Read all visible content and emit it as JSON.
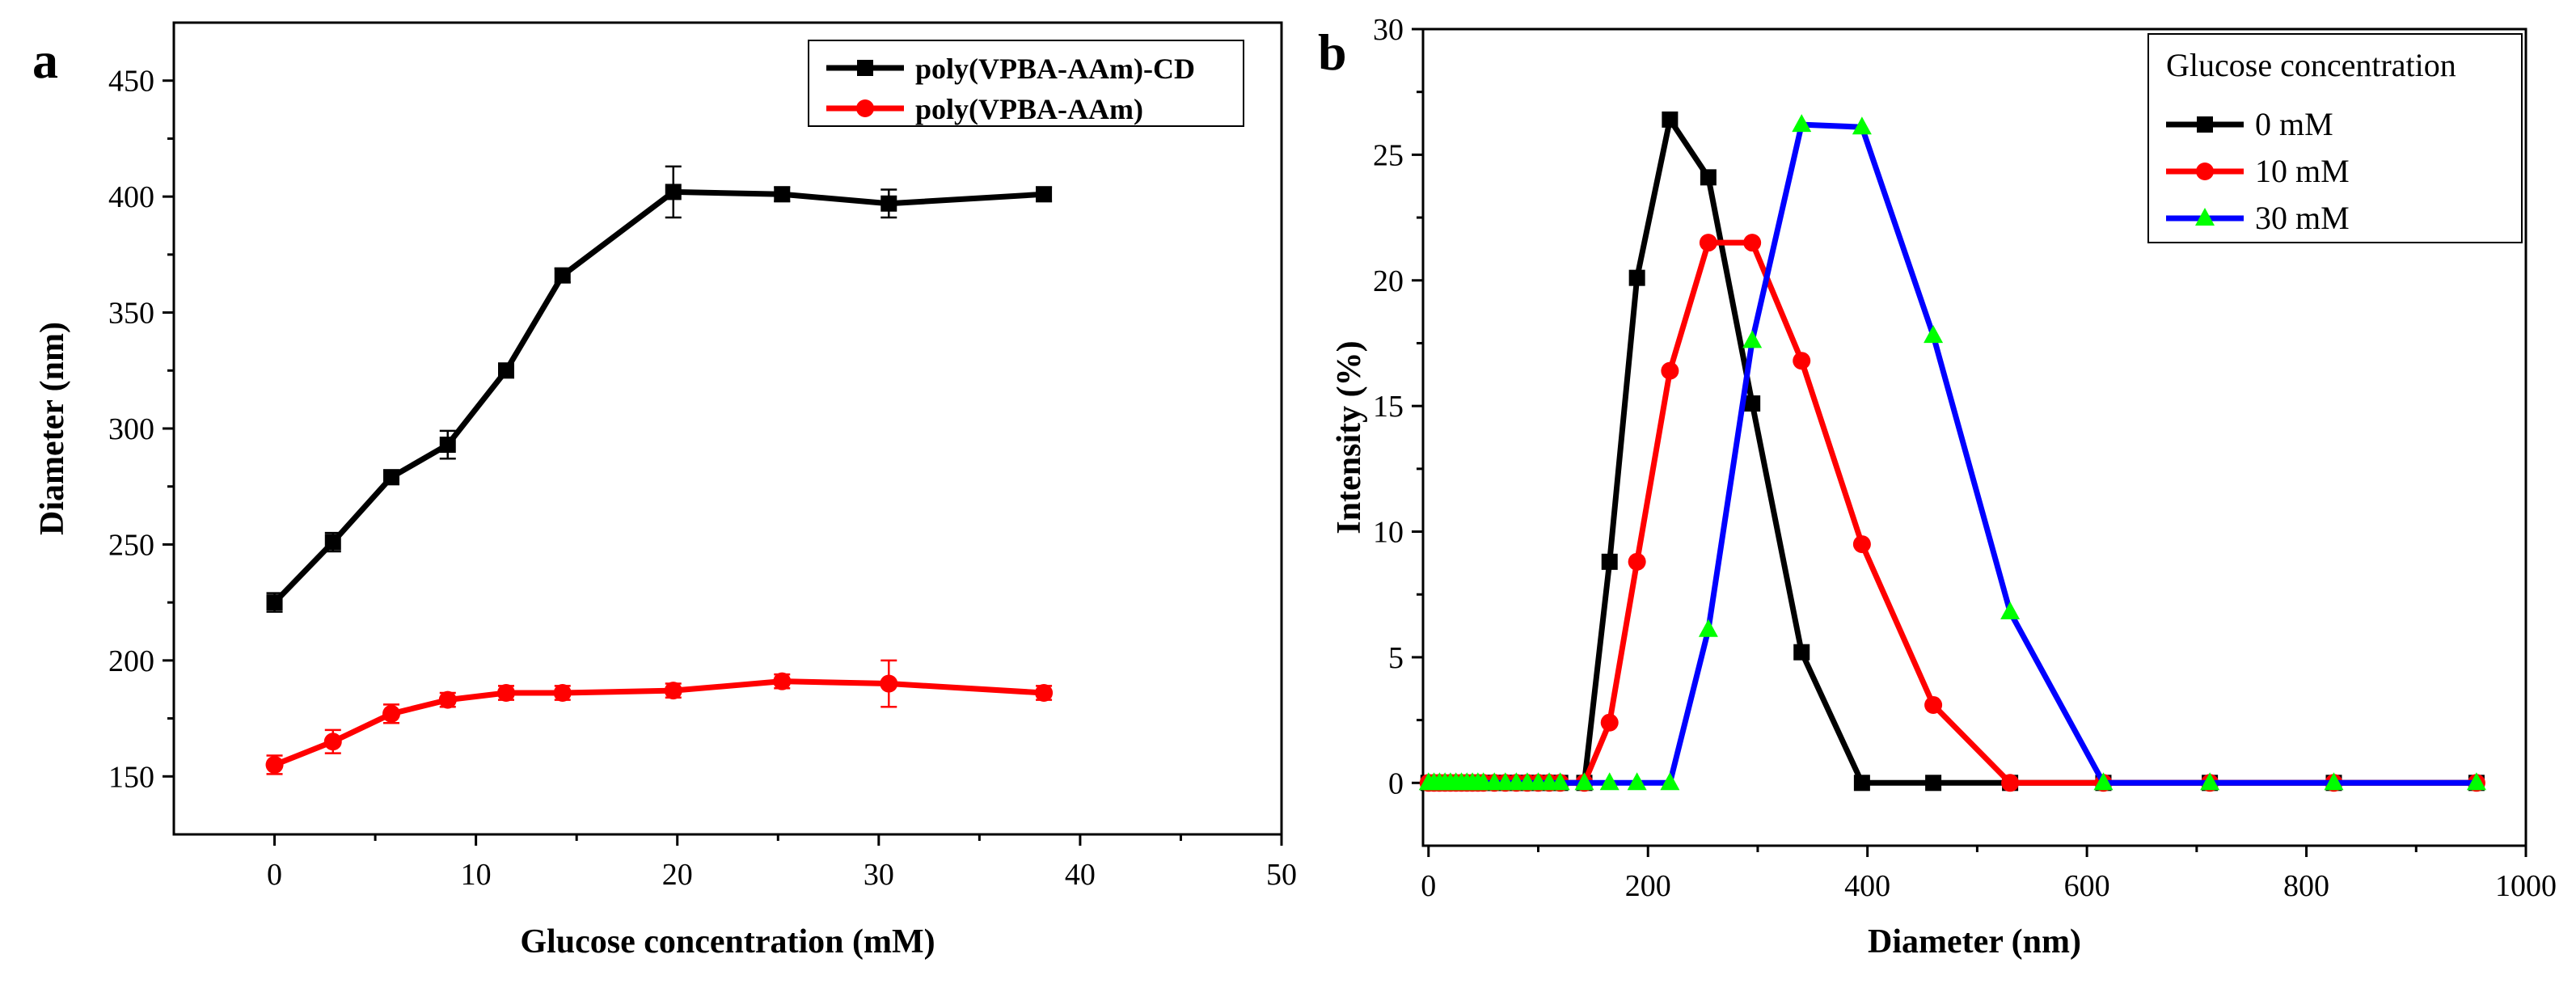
{
  "chart_data": [
    {
      "type": "line",
      "panel_label": "a",
      "xlabel": "Glucose concentration (mM)",
      "ylabel": "Diameter (nm)",
      "xlim": [
        -5,
        50
      ],
      "ylim": [
        125,
        475
      ],
      "xticks": [
        0,
        10,
        20,
        30,
        40,
        50
      ],
      "yticks": [
        150,
        200,
        250,
        300,
        350,
        400,
        450
      ],
      "legend_position": "top-right",
      "series": [
        {
          "name": "poly(VPBA-AAm)-CD",
          "color": "#000000",
          "marker": "square",
          "x": [
            0,
            2.9,
            5.8,
            8.6,
            11.5,
            14.3,
            19.8,
            25.2,
            30.5,
            38.2
          ],
          "y": [
            225,
            251,
            279,
            293,
            325,
            366,
            402,
            401,
            397,
            401
          ],
          "err": [
            4,
            4,
            3,
            6,
            3,
            3,
            11,
            3,
            6,
            3
          ]
        },
        {
          "name": "poly(VPBA-AAm)",
          "color": "#ff0000",
          "marker": "circle",
          "x": [
            0,
            2.9,
            5.8,
            8.6,
            11.5,
            14.3,
            19.8,
            25.2,
            30.5,
            38.2
          ],
          "y": [
            155,
            165,
            177,
            183,
            186,
            186,
            187,
            191,
            190,
            186
          ],
          "err": [
            4,
            5,
            4,
            3,
            3,
            3,
            3,
            3,
            10,
            3
          ]
        }
      ]
    },
    {
      "type": "line",
      "panel_label": "b",
      "xlabel": "Diameter (nm)",
      "ylabel": "Intensity (%)",
      "xlim": [
        -5,
        1000
      ],
      "ylim": [
        -2.5,
        30
      ],
      "xticks": [
        0,
        200,
        400,
        600,
        800,
        1000
      ],
      "yticks": [
        0,
        5,
        10,
        15,
        20,
        25,
        30
      ],
      "legend_title": "Glucose concentration",
      "legend_position": "top-right",
      "series": [
        {
          "name": "0   mM",
          "color": "#000000",
          "marker": "square",
          "x": [
            0,
            5,
            10,
            15,
            20,
            25,
            30,
            35,
            40,
            45,
            50,
            60,
            70,
            80,
            90,
            100,
            110,
            120,
            142,
            165,
            190,
            220,
            255,
            295,
            340,
            395,
            460,
            530,
            615,
            712,
            825,
            955
          ],
          "y": [
            0,
            0,
            0,
            0,
            0,
            0,
            0,
            0,
            0,
            0,
            0,
            0,
            0,
            0,
            0,
            0,
            0,
            0,
            0,
            8.8,
            20.1,
            26.4,
            24.1,
            15.1,
            5.2,
            0,
            0,
            0,
            0,
            0,
            0,
            0
          ]
        },
        {
          "name": "10 mM",
          "color": "#ff0000",
          "marker": "circle",
          "x": [
            0,
            5,
            10,
            15,
            20,
            25,
            30,
            35,
            40,
            45,
            50,
            60,
            70,
            80,
            90,
            100,
            110,
            120,
            142,
            165,
            190,
            220,
            255,
            295,
            340,
            395,
            460,
            530,
            615,
            712,
            825,
            955
          ],
          "y": [
            0,
            0,
            0,
            0,
            0,
            0,
            0,
            0,
            0,
            0,
            0,
            0,
            0,
            0,
            0,
            0,
            0,
            0,
            0,
            2.4,
            8.8,
            16.4,
            21.5,
            21.5,
            16.8,
            9.5,
            3.1,
            0,
            0,
            0,
            0,
            0
          ]
        },
        {
          "name": "30 mM",
          "color": "#0000ff",
          "marker": "triangle",
          "marker_color": "#00ff00",
          "x": [
            0,
            5,
            10,
            15,
            20,
            25,
            30,
            35,
            40,
            45,
            50,
            60,
            70,
            80,
            90,
            100,
            110,
            120,
            142,
            165,
            190,
            220,
            255,
            295,
            340,
            395,
            460,
            530,
            615,
            712,
            825,
            955
          ],
          "y": [
            0,
            0,
            0,
            0,
            0,
            0,
            0,
            0,
            0,
            0,
            0,
            0,
            0,
            0,
            0,
            0,
            0,
            0,
            0,
            0,
            0,
            0,
            6.1,
            17.6,
            26.2,
            26.1,
            17.8,
            6.8,
            0,
            0,
            0,
            0
          ]
        }
      ]
    }
  ]
}
